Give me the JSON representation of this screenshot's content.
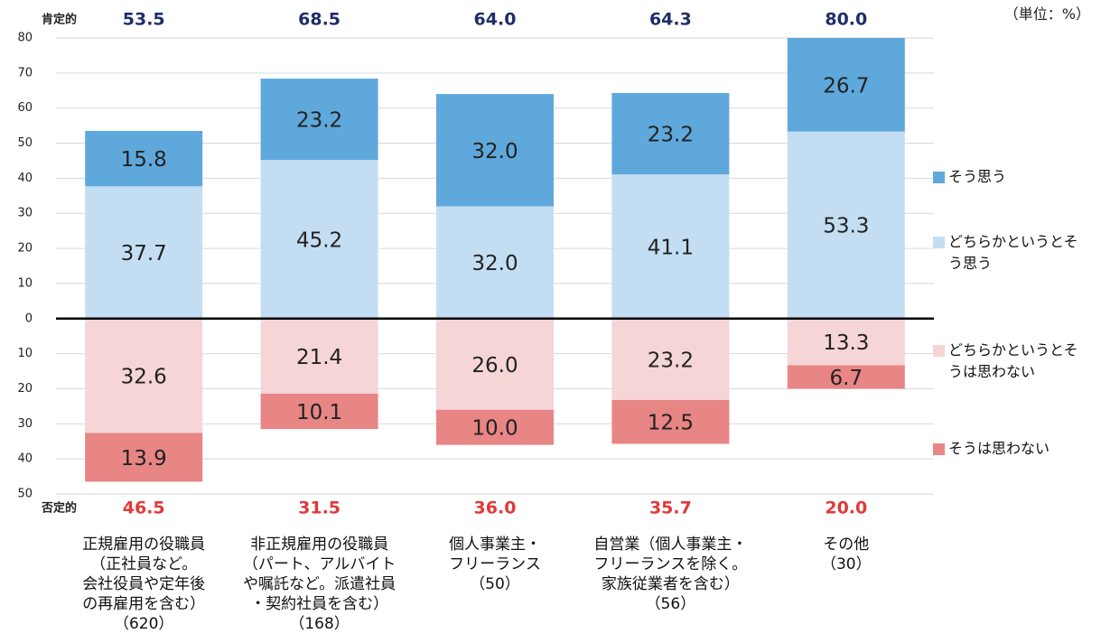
{
  "chart_data": {
    "type": "diverging-stacked-bar",
    "unit": "（単位：%）",
    "categories": [
      "正規雇用の役職員\n（正社員など。\n会社役員や定年後\nの再雇用を含む）\n（620）",
      "非正規雇用の役職員\n（パート、アルバイト\nや嘱託など。派遣社員\n・契約社員を含む）\n（168）",
      "個人事業主・\nフリーランス\n（50）",
      "自営業（個人事業主・\nフリーランスを除く。\n家族従業者を含む）\n（56）",
      "その他\n（30）"
    ],
    "series": [
      {
        "name": "そう思う",
        "color": "#5fa8dc",
        "values": [
          15.8,
          23.2,
          32,
          23.2,
          26.7
        ],
        "value_labels": [
          "15.8",
          "23.2",
          "32.0",
          "23.2",
          "26.7"
        ]
      },
      {
        "name": "どちらかというとそう思う",
        "color": "#c3def2",
        "values": [
          37.7,
          45.2,
          32,
          41.1,
          53.3
        ],
        "value_labels": [
          "37.7",
          "45.2",
          "32.0",
          "41.1",
          "53.3"
        ]
      },
      {
        "name": "どちらかというとそうは思わない",
        "color": "#f5d5d5",
        "values": [
          -32.6,
          -21.4,
          -26,
          -23.2,
          -13.3
        ],
        "value_labels": [
          "32.6",
          "21.4",
          "26.0",
          "23.2",
          "13.3"
        ]
      },
      {
        "name": "そうは思わない",
        "color": "#e88585",
        "values": [
          -13.9,
          -10.1,
          -10,
          -12.5,
          -6.7
        ],
        "value_labels": [
          "13.9",
          "10.1",
          "10.0",
          "12.5",
          "6.7"
        ]
      }
    ],
    "totals": [
      {
        "label": "肯定的",
        "color": "#1f2d6b",
        "values": [
          53.5,
          68.5,
          64,
          64.3,
          80
        ],
        "value_labels": [
          "53.5",
          "68.5",
          "64.0",
          "64.3",
          "80.0"
        ]
      },
      {
        "label": "否定的",
        "color": "#e03a3a",
        "values": [
          -46.5,
          -31.5,
          -36,
          -35.7,
          -20
        ],
        "value_labels": [
          "46.5",
          "31.5",
          "36.0",
          "35.7",
          "20.0"
        ]
      }
    ],
    "ylim": [
      -50,
      80
    ],
    "yticks": [
      80,
      70,
      60,
      50,
      40,
      30,
      20,
      10,
      0,
      {
        "value": -10,
        "label": "10"
      },
      {
        "value": -20,
        "label": "20"
      },
      {
        "value": -30,
        "label": "30"
      },
      {
        "value": -40,
        "label": "40"
      },
      {
        "value": -50,
        "label": "50"
      }
    ],
    "grid": true
  }
}
